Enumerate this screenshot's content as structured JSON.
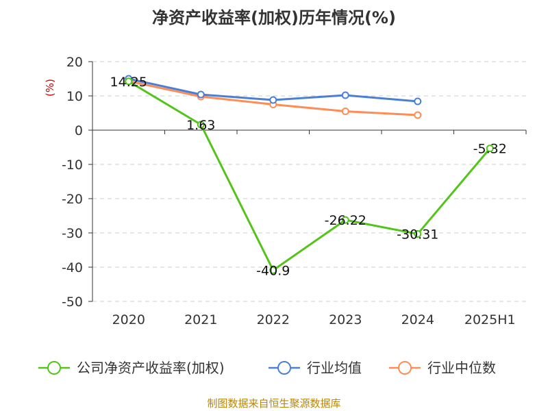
{
  "chart_data": {
    "type": "line",
    "title": "净资产收益率(加权)历年情况(%)",
    "ylabel": "(%)",
    "categories": [
      "2020",
      "2021",
      "2022",
      "2023",
      "2024",
      "2025H1"
    ],
    "ylim": [
      -50,
      20
    ],
    "yticks": [
      20,
      10,
      0,
      -10,
      -20,
      -30,
      -40,
      -50
    ],
    "grid": true,
    "legend_position": "bottom",
    "series": [
      {
        "name": "公司净资产收益率(加权)",
        "color": "#52c41a",
        "values": [
          14.25,
          1.63,
          -40.9,
          -26.22,
          -30.31,
          -5.32
        ],
        "labels": [
          "14.25",
          "1.63",
          "-40.9",
          "-26.22",
          "-30.31",
          "-5.32"
        ]
      },
      {
        "name": "行业均值",
        "color": "#4a7fd6",
        "values": [
          15.0,
          10.4,
          8.8,
          10.2,
          8.4,
          null
        ]
      },
      {
        "name": "行业中位数",
        "color": "#ff8c55",
        "values": [
          14.3,
          9.8,
          7.5,
          5.5,
          4.4,
          null
        ]
      }
    ]
  },
  "source": "制图数据来自恒生聚源数据库"
}
